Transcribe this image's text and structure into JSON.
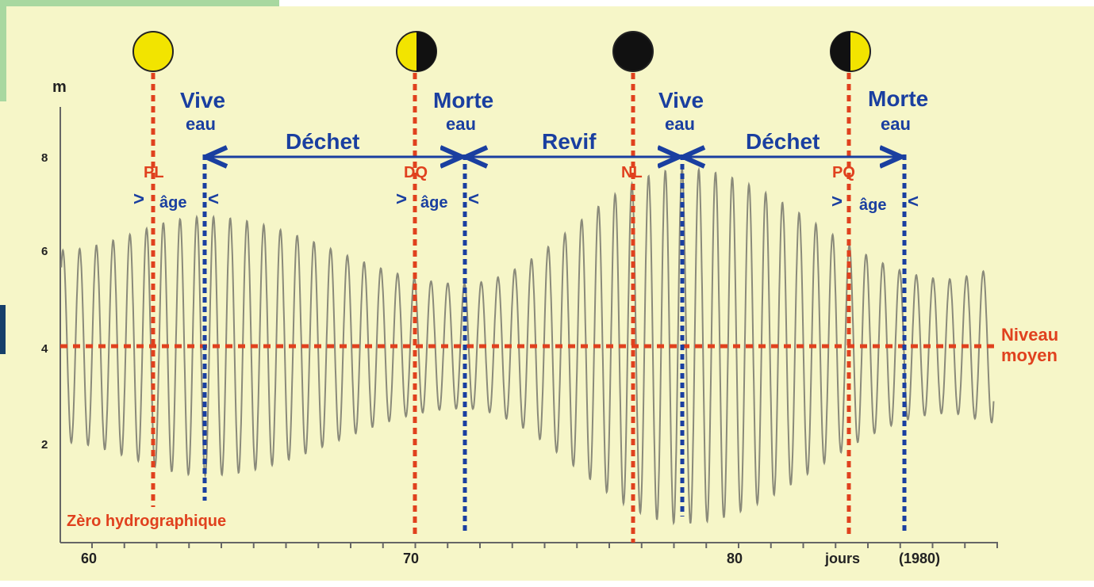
{
  "axis": {
    "unit": "m",
    "y_ticks": [
      "2",
      "4",
      "6",
      "8"
    ],
    "x_ticks": [
      "60",
      "70",
      "80"
    ],
    "x_unit": "jours",
    "year": "(1980)"
  },
  "levels": {
    "mean_label_line1": "Niveau",
    "mean_label_line2": "moyen",
    "datum_label": "Zèro hydrographique"
  },
  "phases": [
    {
      "code": "PL",
      "icon": "full-moon-icon"
    },
    {
      "code": "DQ",
      "icon": "last-quarter-moon-icon"
    },
    {
      "code": "NL",
      "icon": "new-moon-icon"
    },
    {
      "code": "PQ",
      "icon": "first-quarter-moon-icon"
    }
  ],
  "tides": [
    {
      "line1": "Vive",
      "line2": "eau"
    },
    {
      "line1": "Morte",
      "line2": "eau"
    },
    {
      "line1": "Vive",
      "line2": "eau"
    },
    {
      "line1": "Morte",
      "line2": "eau"
    }
  ],
  "periods": [
    "Déchet",
    "Revif",
    "Déchet"
  ],
  "age_label": "âge",
  "age_marker_open": ">",
  "age_marker_close": "<",
  "colors": {
    "background": "#f6f6c8",
    "moon_yellow": "#f2e400",
    "moon_dark": "#111111",
    "phase_line": "#e0411e",
    "tide_line": "#1a3fa0",
    "curve": "#8a8a7a"
  },
  "chart_data": {
    "type": "line",
    "title": "",
    "xlabel": "jours (1980)",
    "ylabel": "m",
    "xlim": [
      59,
      88
    ],
    "ylim": [
      0,
      9
    ],
    "mean_level": 4,
    "x_ticks": [
      60,
      70,
      80
    ],
    "y_ticks": [
      2,
      4,
      6,
      8
    ],
    "phase_days": {
      "PL": 61.9,
      "DQ": 70.0,
      "NL": 76.7,
      "PQ": 84.8
    },
    "tide_days": {
      "vive_eau_1": 63.5,
      "morte_eau_1": 71.5,
      "vive_eau_2": 78.3,
      "morte_eau_2": 86.5
    },
    "series": [
      {
        "type": "tide-envelope",
        "cycles_per_day": 1.932,
        "amplitude_m": [
          {
            "day": 59.0,
            "value": 2.0
          },
          {
            "day": 63.5,
            "value": 2.7
          },
          {
            "day": 71.5,
            "value": 1.3
          },
          {
            "day": 78.3,
            "value": 3.7
          },
          {
            "day": 86.5,
            "value": 1.4
          },
          {
            "day": 88.0,
            "value": 1.6
          }
        ]
      }
    ]
  }
}
